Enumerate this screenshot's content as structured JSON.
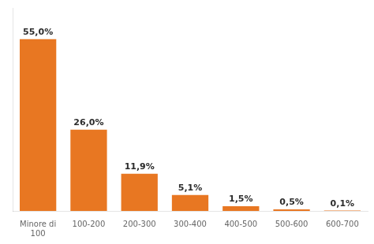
{
  "chart_data": {
    "type": "bar",
    "categories": [
      "Minore di\n100",
      "100-200",
      "200-300",
      "300-400",
      "400-500",
      "500-600",
      "600-700"
    ],
    "values": [
      55.0,
      26.0,
      11.9,
      5.1,
      1.5,
      0.5,
      0.1
    ],
    "value_labels": [
      "55,0%",
      "26,0%",
      "11,9%",
      "5,1%",
      "1,5%",
      "0,5%",
      "0,1%"
    ],
    "data_labels": true,
    "color": "#E87722",
    "ylim": [
      0,
      65
    ],
    "tick_labels": "x",
    "grid": false
  }
}
